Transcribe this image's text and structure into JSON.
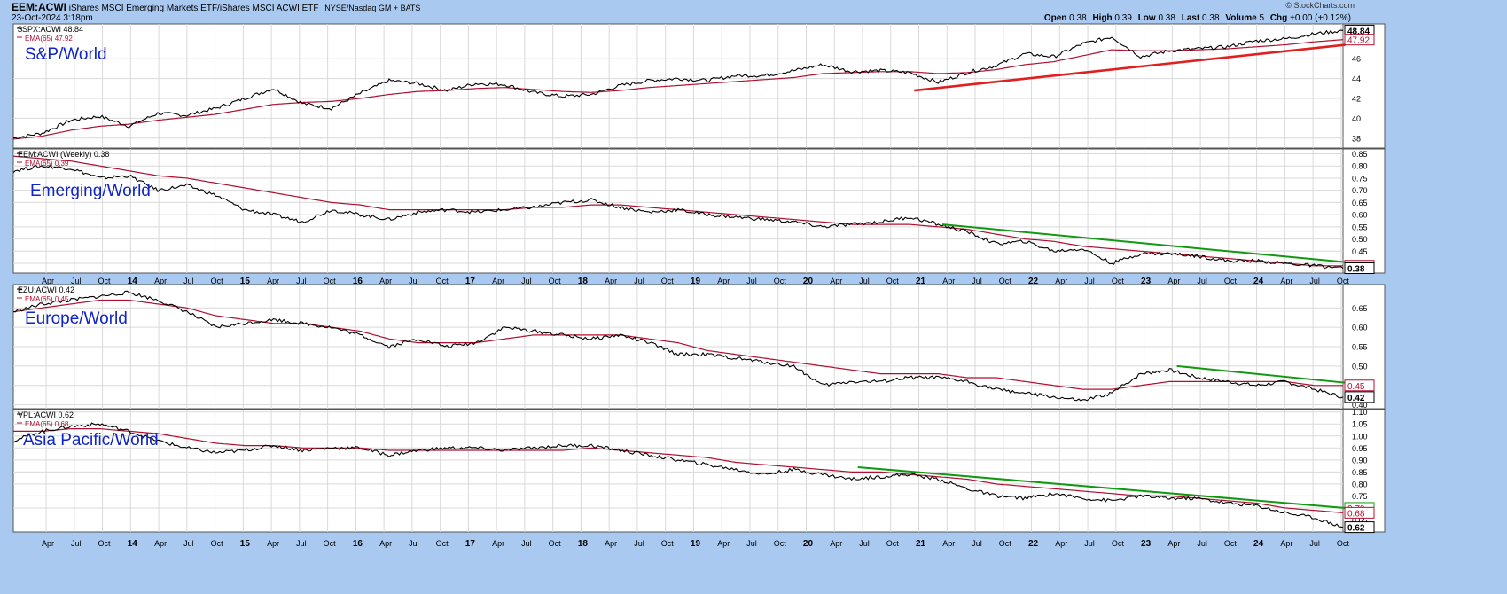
{
  "header": {
    "symbol": "EEM:ACWI",
    "description": "iShares MSCI Emerging Markets ETF/iShares MSCI ACWI ETF",
    "exchange": "NYSE/Nasdaq GM + BATS",
    "datetime": "23-Oct-2024 3:18pm",
    "ohlc_parts": [
      {
        "label": "Open",
        "value": "0.38"
      },
      {
        "label": "High",
        "value": "0.39"
      },
      {
        "label": "Low",
        "value": "0.38"
      },
      {
        "label": "Last",
        "value": "0.38"
      },
      {
        "label": "Volume",
        "value": "5"
      },
      {
        "label": "Chg",
        "value": "+0.00 (+0.12%)"
      }
    ],
    "watermark": "© StockCharts.com"
  },
  "colors": {
    "price_line": "#000000",
    "ema_line": "#b01030",
    "trend_red": "#e02020",
    "trend_green": "#119911",
    "panel_label": "#1024c8",
    "background": "#a9c9f0",
    "panel_bg": "#ffffff",
    "grid": "#d9d9d9"
  },
  "time_axis_labels": [
    "Apr",
    "Jul",
    "Oct",
    "14",
    "Apr",
    "Jul",
    "Oct",
    "15",
    "Apr",
    "Jul",
    "Oct",
    "16",
    "Apr",
    "Jul",
    "Oct",
    "17",
    "Apr",
    "Jul",
    "Oct",
    "18",
    "Apr",
    "Jul",
    "Oct",
    "19",
    "Apr",
    "Jul",
    "Oct",
    "20",
    "Apr",
    "Jul",
    "Oct",
    "21",
    "Apr",
    "Jul",
    "Oct",
    "22",
    "Apr",
    "Jul",
    "Oct",
    "23",
    "Apr",
    "Jul",
    "Oct",
    "24",
    "Apr",
    "Jul",
    "Oct"
  ],
  "chart_data": [
    {
      "type": "line",
      "label": "S&P/World",
      "legend": [
        "$SPX:ACWI 48.84",
        "EMA(65) 47.92"
      ],
      "x_range": [
        "2013-01",
        "2024-10"
      ],
      "ylim": [
        37,
        49.5
      ],
      "y_ticks": [
        38,
        40,
        42,
        44,
        46
      ],
      "last_labels": [
        "48.84",
        "47.92"
      ],
      "series": [
        {
          "values": [
            38.0,
            38.5,
            39.8,
            40.2,
            39.2,
            40.5,
            40.3,
            41.0,
            42.0,
            43.0,
            41.5,
            41.0,
            42.5,
            43.8,
            43.5,
            42.8,
            43.5,
            43.4,
            42.6,
            42.2,
            42.4,
            43.3,
            43.8,
            44.0,
            43.8,
            44.3,
            44.3,
            44.8,
            45.4,
            44.7,
            44.8,
            44.6,
            43.6,
            44.6,
            45.3,
            46.5,
            46.2,
            47.5,
            48.2,
            46.2,
            46.8,
            47.0,
            47.2,
            47.8,
            48.0,
            48.5,
            48.84
          ]
        },
        {
          "values": [
            37.9,
            38.2,
            38.8,
            39.2,
            39.4,
            39.8,
            40.1,
            40.4,
            40.9,
            41.4,
            41.6,
            41.7,
            42.0,
            42.4,
            42.7,
            42.8,
            43.0,
            43.1,
            42.9,
            42.7,
            42.6,
            42.8,
            43.1,
            43.3,
            43.5,
            43.7,
            43.9,
            44.1,
            44.5,
            44.6,
            44.7,
            44.7,
            44.5,
            44.6,
            44.9,
            45.4,
            45.7,
            46.3,
            46.9,
            46.8,
            46.8,
            46.9,
            47.0,
            47.2,
            47.4,
            47.7,
            47.92
          ]
        }
      ],
      "trendlines": [
        {
          "color": "red",
          "from": {
            "x": "2021-01",
            "y": 42.8
          },
          "to": {
            "x": "2024-10",
            "y": 47.4
          }
        }
      ]
    },
    {
      "type": "line",
      "label": "Emerging/World",
      "legend": [
        "EEM:ACWI (Weekly) 0.38",
        "EMA(65) 0.39"
      ],
      "x_range": [
        "2013-01",
        "2024-10"
      ],
      "ylim": [
        0.36,
        0.87
      ],
      "y_ticks": [
        0.4,
        0.45,
        0.5,
        0.55,
        0.6,
        0.65,
        0.7,
        0.75,
        0.8,
        0.85
      ],
      "y_tick_labels": [
        "0.40",
        "0.45",
        "0.50",
        "0.55",
        "0.60",
        "0.65",
        "0.70",
        "0.75",
        "0.80",
        "0.85"
      ],
      "last_labels": [
        "0.39",
        "0.38"
      ],
      "series": [
        {
          "values": [
            0.78,
            0.8,
            0.79,
            0.75,
            0.76,
            0.7,
            0.72,
            0.68,
            0.62,
            0.6,
            0.57,
            0.62,
            0.6,
            0.58,
            0.61,
            0.62,
            0.61,
            0.62,
            0.63,
            0.65,
            0.66,
            0.63,
            0.61,
            0.62,
            0.6,
            0.59,
            0.58,
            0.57,
            0.55,
            0.56,
            0.57,
            0.59,
            0.56,
            0.53,
            0.48,
            0.49,
            0.45,
            0.46,
            0.4,
            0.44,
            0.44,
            0.43,
            0.41,
            0.41,
            0.4,
            0.39,
            0.38
          ]
        },
        {
          "values": [
            0.84,
            0.83,
            0.82,
            0.8,
            0.78,
            0.76,
            0.75,
            0.73,
            0.71,
            0.69,
            0.67,
            0.65,
            0.64,
            0.62,
            0.62,
            0.62,
            0.62,
            0.62,
            0.63,
            0.63,
            0.64,
            0.64,
            0.63,
            0.62,
            0.61,
            0.6,
            0.59,
            0.58,
            0.57,
            0.56,
            0.56,
            0.56,
            0.55,
            0.54,
            0.52,
            0.5,
            0.49,
            0.47,
            0.46,
            0.45,
            0.44,
            0.43,
            0.42,
            0.41,
            0.4,
            0.39,
            0.39
          ]
        }
      ],
      "trendlines": [
        {
          "color": "green",
          "from": {
            "x": "2021-04",
            "y": 0.56
          },
          "to": {
            "x": "2024-10",
            "y": 0.405
          }
        }
      ]
    },
    {
      "type": "line",
      "label": "Europe/World",
      "legend": [
        "EZU:ACWI 0.42",
        "EMA(65) 0.45"
      ],
      "x_range": [
        "2013-01",
        "2024-10"
      ],
      "ylim": [
        0.39,
        0.71
      ],
      "y_ticks": [
        0.4,
        0.45,
        0.5,
        0.55,
        0.6,
        0.65
      ],
      "y_tick_labels": [
        "0.40",
        "0.45",
        "0.50",
        "0.55",
        "0.60",
        "0.65"
      ],
      "last_labels": [
        "0.45",
        "0.42"
      ],
      "series": [
        {
          "values": [
            0.64,
            0.66,
            0.67,
            0.68,
            0.69,
            0.67,
            0.64,
            0.6,
            0.61,
            0.62,
            0.61,
            0.6,
            0.58,
            0.55,
            0.57,
            0.55,
            0.56,
            0.6,
            0.59,
            0.58,
            0.57,
            0.58,
            0.56,
            0.53,
            0.53,
            0.52,
            0.51,
            0.5,
            0.45,
            0.46,
            0.46,
            0.47,
            0.47,
            0.46,
            0.44,
            0.43,
            0.42,
            0.41,
            0.43,
            0.48,
            0.49,
            0.47,
            0.46,
            0.45,
            0.46,
            0.44,
            0.42
          ]
        },
        {
          "values": [
            0.64,
            0.65,
            0.66,
            0.67,
            0.67,
            0.66,
            0.65,
            0.63,
            0.62,
            0.61,
            0.61,
            0.6,
            0.59,
            0.57,
            0.56,
            0.56,
            0.56,
            0.57,
            0.58,
            0.58,
            0.58,
            0.58,
            0.57,
            0.56,
            0.54,
            0.53,
            0.52,
            0.51,
            0.5,
            0.49,
            0.48,
            0.48,
            0.48,
            0.47,
            0.47,
            0.46,
            0.45,
            0.44,
            0.44,
            0.45,
            0.46,
            0.46,
            0.46,
            0.46,
            0.46,
            0.45,
            0.45
          ]
        }
      ],
      "trendlines": [
        {
          "color": "green",
          "from": {
            "x": "2023-05",
            "y": 0.5
          },
          "to": {
            "x": "2024-10",
            "y": 0.457
          }
        }
      ]
    },
    {
      "type": "line",
      "label": "Asia Pacific/World",
      "legend": [
        "VPL:ACWI 0.62",
        "EMA(65) 0.68"
      ],
      "x_range": [
        "2013-01",
        "2024-10"
      ],
      "ylim": [
        0.6,
        1.11
      ],
      "y_ticks": [
        0.65,
        0.7,
        0.75,
        0.8,
        0.85,
        0.9,
        0.95,
        1.0,
        1.05,
        1.1
      ],
      "y_tick_labels": [
        "0.65",
        "0.70",
        "0.75",
        "0.80",
        "0.85",
        "0.90",
        "0.95",
        "1.00",
        "1.05",
        "1.10"
      ],
      "last_labels": [
        "0.70",
        "0.68",
        "0.62"
      ],
      "series": [
        {
          "values": [
            0.98,
            1.02,
            1.04,
            1.05,
            1.02,
            0.98,
            0.95,
            0.93,
            0.94,
            0.96,
            0.94,
            0.95,
            0.95,
            0.92,
            0.94,
            0.95,
            0.95,
            0.94,
            0.95,
            0.96,
            0.96,
            0.94,
            0.92,
            0.9,
            0.88,
            0.86,
            0.84,
            0.86,
            0.84,
            0.82,
            0.83,
            0.84,
            0.82,
            0.78,
            0.75,
            0.74,
            0.76,
            0.74,
            0.73,
            0.75,
            0.74,
            0.74,
            0.72,
            0.71,
            0.68,
            0.66,
            0.62
          ]
        },
        {
          "values": [
            1.02,
            1.02,
            1.03,
            1.03,
            1.02,
            1.01,
            0.99,
            0.97,
            0.96,
            0.96,
            0.95,
            0.95,
            0.95,
            0.94,
            0.94,
            0.94,
            0.94,
            0.94,
            0.94,
            0.94,
            0.95,
            0.94,
            0.93,
            0.92,
            0.91,
            0.89,
            0.88,
            0.87,
            0.86,
            0.85,
            0.85,
            0.84,
            0.83,
            0.82,
            0.8,
            0.79,
            0.78,
            0.77,
            0.76,
            0.75,
            0.75,
            0.74,
            0.73,
            0.72,
            0.7,
            0.69,
            0.68
          ]
        }
      ],
      "trendlines": [
        {
          "color": "green",
          "from": {
            "x": "2020-07",
            "y": 0.87
          },
          "to": {
            "x": "2024-10",
            "y": 0.7
          }
        }
      ]
    }
  ]
}
